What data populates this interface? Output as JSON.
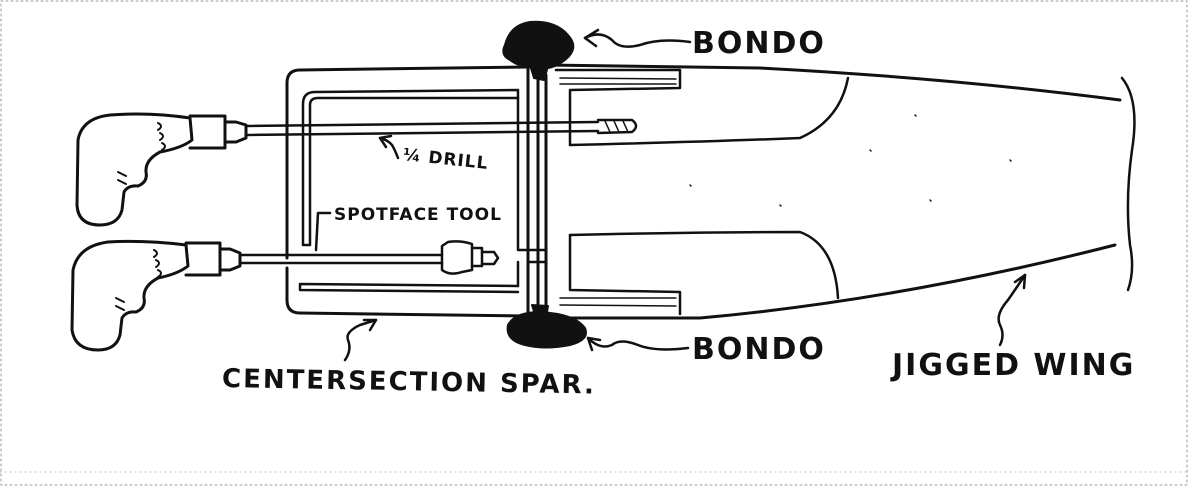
{
  "labels": {
    "bondo_top": "BONDO",
    "bondo_bottom": "BONDO",
    "drill": "¼ DRILL",
    "spotface": "SPOTFACE TOOL",
    "spar": "CENTERSECTION SPAR.",
    "wing": "JIGGED WING"
  },
  "colors": {
    "ink": "#111111",
    "paper": "#ffffff"
  },
  "icons": {
    "drill_upper": "power-drill-icon",
    "drill_lower": "power-drill-icon"
  }
}
